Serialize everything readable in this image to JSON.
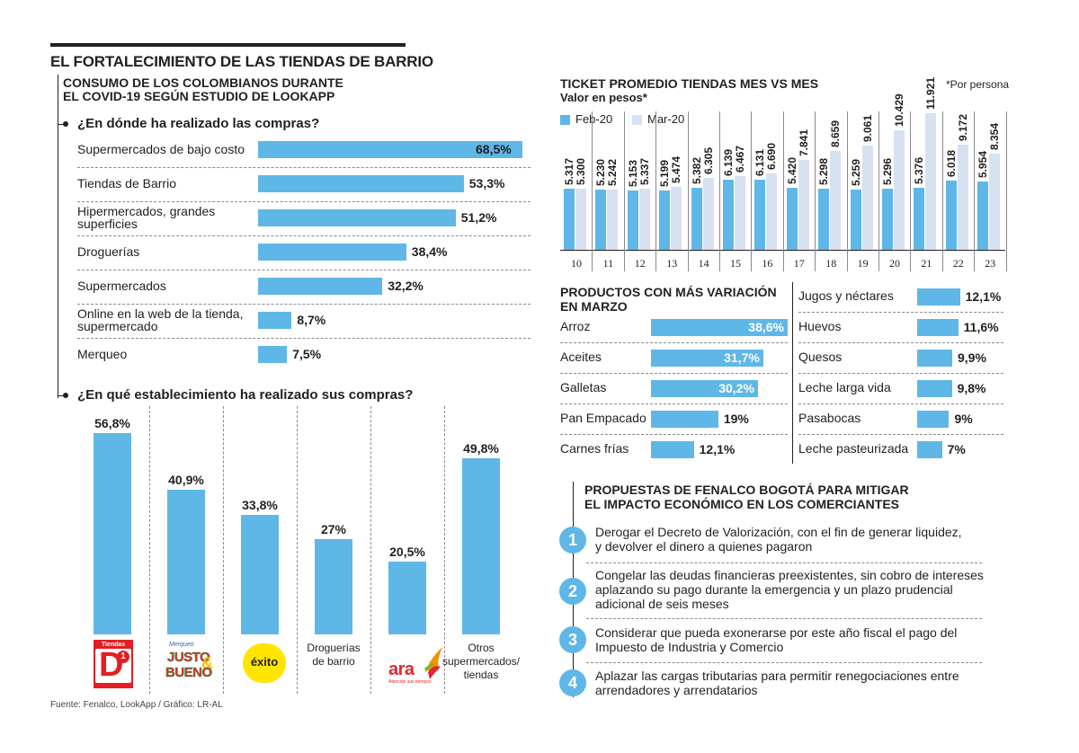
{
  "header": {
    "main_title": "EL FORTALECIMIENTO DE LAS TIENDAS DE BARRIO",
    "subtitle_line1": "CONSUMO DE LOS COLOMBIANOS DURANTE",
    "subtitle_line2": "EL COVID-19 SEGÚN ESTUDIO DE LOOKAPP"
  },
  "q1": {
    "title": "¿En dónde ha realizado las compras?"
  },
  "q2": {
    "title": "¿En qué establecimiento ha realizado sus compras?"
  },
  "ticket": {
    "title": "TICKET PROMEDIO TIENDAS MES VS MES",
    "subtitle": "Valor en pesos*",
    "note": "*Por persona"
  },
  "productos": {
    "title_line1": "PRODUCTOS CON MÁS VARIACIÓN",
    "title_line2": "EN MARZO"
  },
  "propuestas": {
    "title_line1": "PROPUESTAS DE FENALCO BOGOTÁ PARA MITIGAR",
    "title_line2": "EL IMPACTO ECONÓMICO EN LOS COMERCIANTES",
    "items": [
      {
        "num": "1",
        "line1": "Derogar el Decreto de Valorización, con el fin de generar liquidez,",
        "line2": "y devolver el dinero a quienes pagaron",
        "line3": ""
      },
      {
        "num": "2",
        "line1": "Congelar las deudas financieras preexistentes, sin cobro de intereses",
        "line2": "aplazando su pago durante la emergencia y un plazo prudencial",
        "line3": "adicional de seis meses"
      },
      {
        "num": "3",
        "line1": "Considerar que pueda exonerarse por este año fiscal el pago del",
        "line2": "Impuesto de Industria y Comercio",
        "line3": ""
      },
      {
        "num": "4",
        "line1": "Aplazar las cargas tributarias para permitir renegociaciones entre",
        "line2": "arrendadores y arrendatarios",
        "line3": ""
      }
    ]
  },
  "logos": {
    "d1_top": "Tiendas",
    "d1_big": "D",
    "d1_num": "1",
    "justo_small": "Merqueo",
    "justo_line1": "JUSTO",
    "justo_amp": "&",
    "justo_line2": "BUENO",
    "exito": "éxito",
    "ara": "ara",
    "ara_tag": "Atención sus tiempos",
    "ara_color": "#e3262f",
    "exito_color": "#ffe500",
    "d1_color": "#e31e24"
  },
  "source": "Fuente: Fenalco, LookApp / Gráfico: LR-AL",
  "colors": {
    "bar": "#5fb7e8",
    "feb": "#5fb7e8",
    "mar": "#d6e1f1",
    "text": "#231f20"
  },
  "chart_data": [
    {
      "type": "bar",
      "orientation": "horizontal",
      "title": "¿En dónde ha realizado las compras?",
      "categories": [
        [
          "Supermercados de bajo costo"
        ],
        [
          "Tiendas de Barrio"
        ],
        [
          "Hipermercados, grandes",
          "superficies"
        ],
        [
          "Droguerías"
        ],
        [
          "Supermercados"
        ],
        [
          "Online en la web de la tienda,",
          "supermercado"
        ],
        [
          "Merqueo"
        ]
      ],
      "values": [
        68.5,
        53.3,
        51.2,
        38.4,
        32.2,
        8.7,
        7.5
      ],
      "labels": [
        "68,5%",
        "53,3%",
        "51,2%",
        "38,4%",
        "32,2%",
        "8,7%",
        "7,5%"
      ],
      "unit": "%"
    },
    {
      "type": "bar",
      "orientation": "vertical",
      "title": "¿En qué establecimiento ha realizado sus compras?",
      "categories": [
        "Tiendas D1",
        "Merqueo Justo & Bueno",
        "Éxito",
        "Droguerías de barrio",
        "Ara",
        "Otros supermercados/ tiendas"
      ],
      "category_text": [
        [],
        [],
        [],
        [
          "Droguerías",
          "de barrio"
        ],
        [],
        [
          "Otros",
          "supermercados/",
          "tiendas"
        ]
      ],
      "values": [
        56.8,
        40.9,
        33.8,
        27,
        20.5,
        49.8
      ],
      "labels": [
        "56,8%",
        "40,9%",
        "33,8%",
        "27%",
        "20,5%",
        "49,8%"
      ],
      "unit": "%"
    },
    {
      "type": "bar",
      "orientation": "vertical",
      "title": "TICKET PROMEDIO TIENDAS MES VS MES",
      "ylabel": "Valor en pesos*",
      "categories": [
        "10",
        "11",
        "12",
        "13",
        "14",
        "15",
        "16",
        "17",
        "18",
        "19",
        "20",
        "21",
        "22",
        "23"
      ],
      "series": [
        {
          "name": "Feb-20",
          "values": [
            5317,
            5230,
            5153,
            5199,
            5382,
            6139,
            6131,
            5420,
            5298,
            5259,
            5296,
            5376,
            6018,
            5954
          ],
          "labels": [
            "5.317",
            "5.230",
            "5.153",
            "5.199",
            "5.382",
            "6.139",
            "6.131",
            "5.420",
            "5.298",
            "5.259",
            "5.296",
            "5.376",
            "6.018",
            "5.954"
          ]
        },
        {
          "name": "Mar-20",
          "values": [
            5300,
            5242,
            5337,
            5474,
            6305,
            6467,
            6690,
            7841,
            8659,
            9061,
            10429,
            11921,
            9172,
            8354
          ],
          "labels": [
            "5.300",
            "5.242",
            "5.337",
            "5.474",
            "6.305",
            "6.467",
            "6.690",
            "7.841",
            "8.659",
            "9.061",
            "10.429",
            "11.921",
            "9.172",
            "8.354"
          ]
        }
      ]
    },
    {
      "type": "bar",
      "orientation": "horizontal",
      "title": "PRODUCTOS CON MÁS VARIACIÓN EN MARZO",
      "categories": [
        "Arroz",
        "Aceites",
        "Galletas",
        "Pan Empacado",
        "Carnes frías",
        "Jugos y néctares",
        "Huevos",
        "Quesos",
        "Leche larga vida",
        "Pasabocas",
        "Leche pasteurizada"
      ],
      "values": [
        38.6,
        31.7,
        30.2,
        19,
        12.1,
        12.1,
        11.6,
        9.9,
        9.8,
        9,
        7
      ],
      "labels": [
        "38,6%",
        "31,7%",
        "30,2%",
        "19%",
        "12,1%",
        "12,1%",
        "11,6%",
        "9,9%",
        "9,8%",
        "9%",
        "7%"
      ],
      "unit": "%"
    }
  ]
}
